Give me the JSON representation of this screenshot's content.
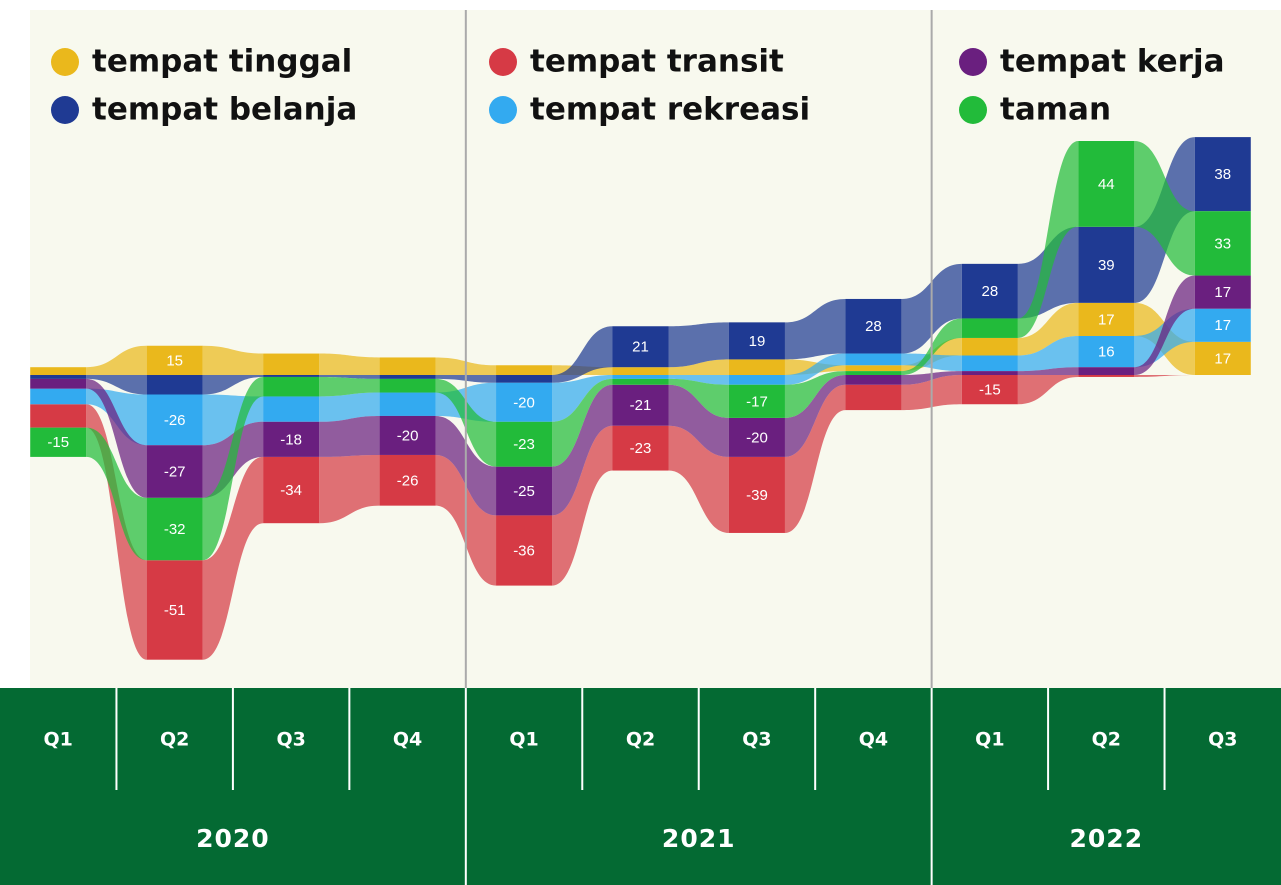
{
  "chart_data": {
    "type": "stream",
    "groups": [
      {
        "label": "2020",
        "categories": [
          "Q1",
          "Q2",
          "Q3",
          "Q4"
        ]
      },
      {
        "label": "2021",
        "categories": [
          "Q1",
          "Q2",
          "Q3",
          "Q4"
        ]
      },
      {
        "label": "2022",
        "categories": [
          "Q1",
          "Q2",
          "Q3"
        ]
      }
    ],
    "series": [
      {
        "name": "tempat tinggal",
        "color": "#eab81c",
        "values": [
          4,
          15,
          11,
          9,
          5,
          4,
          8,
          3,
          9,
          17,
          17
        ]
      },
      {
        "name": "tempat belanja",
        "color": "#1f3a93",
        "values": [
          -2,
          -10,
          -1,
          -2,
          -4,
          21,
          19,
          28,
          28,
          39,
          38
        ]
      },
      {
        "name": "tempat transit",
        "color": "#d63a45",
        "values": [
          -12,
          -51,
          -34,
          -26,
          -36,
          -23,
          -39,
          -13,
          -15,
          -1,
          0
        ]
      },
      {
        "name": "tempat rekreasi",
        "color": "#33aaf0",
        "values": [
          -8,
          -26,
          -13,
          -12,
          -20,
          -2,
          -5,
          6,
          8,
          16,
          17
        ]
      },
      {
        "name": "tempat kerja",
        "color": "#6a1f7f",
        "values": [
          -5,
          -27,
          -18,
          -20,
          -25,
          -21,
          -20,
          -5,
          2,
          4,
          17
        ]
      },
      {
        "name": "taman",
        "color": "#22bb3a",
        "values": [
          -15,
          -32,
          -10,
          -7,
          -23,
          -3,
          -17,
          2,
          10,
          44,
          33
        ]
      }
    ]
  }
}
